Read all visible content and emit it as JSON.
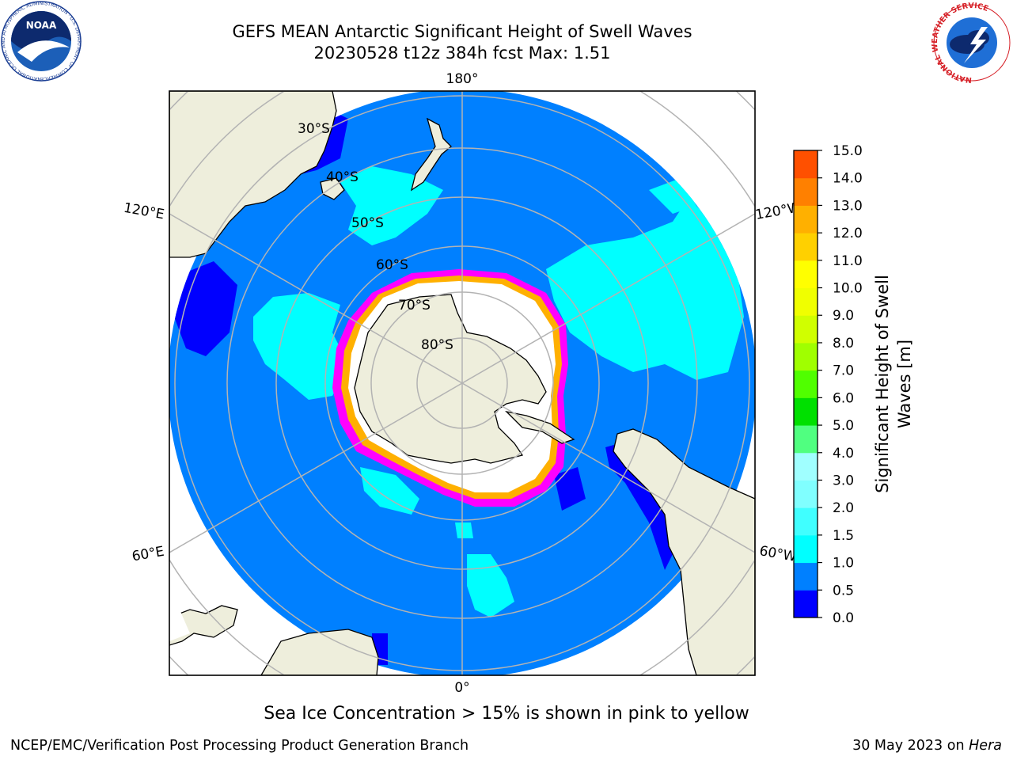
{
  "header": {
    "title_line1": "GEFS MEAN Antarctic Significant Height of Swell Waves",
    "title_line2": "20230528 t12z 384h fcst   Max: 1.51",
    "noaa_logo_text": "NOAA",
    "noaa_ring_text": "NATIONAL OCEANIC AND ATMOSPHERIC ADMINISTRATION · U.S. DEPARTMENT OF COMMERCE",
    "nws_ring_text": "NATIONAL WEATHER SERVICE"
  },
  "map": {
    "projection": "south-polar-stereographic",
    "meridian_labels": {
      "top": "180°",
      "bottom": "0°",
      "left_upper": "120°E",
      "right_upper": "120°W",
      "left_lower": "60°E",
      "right_lower": "60°W"
    },
    "latitude_labels": [
      "30°S",
      "40°S",
      "50°S",
      "60°S",
      "70°S",
      "80°S"
    ],
    "colors": {
      "ocean_low": "#0080ff",
      "ocean_very_low": "#0000ff",
      "cyan_patches": "#00ffff",
      "light_cyan": "#40e8f0",
      "land": "#eeeedc",
      "sea_ice_pink": "#ff00ff",
      "sea_ice_orange": "#ffb000",
      "gridline": "#b3b3b3"
    }
  },
  "colorbar": {
    "label_line1": "Significant Height of Swell",
    "label_line2": "Waves [m]",
    "ticks": [
      "0.0",
      "0.5",
      "1.0",
      "1.5",
      "2.0",
      "3.0",
      "4.0",
      "5.0",
      "6.0",
      "7.0",
      "8.0",
      "9.0",
      "10.0",
      "11.0",
      "12.0",
      "13.0",
      "14.0",
      "15.0"
    ],
    "colors": [
      "#0000ff",
      "#0080ff",
      "#00ffff",
      "#40ffff",
      "#80ffff",
      "#a0ffff",
      "#50ff80",
      "#00e000",
      "#50ff00",
      "#a0ff00",
      "#d0ff00",
      "#f0ff00",
      "#ffff00",
      "#ffd000",
      "#ffb000",
      "#ff8000",
      "#ff5000",
      "#ff0000"
    ]
  },
  "note": "Sea Ice Concentration > 15% is shown in pink to yellow",
  "footer": {
    "left": "NCEP/EMC/Verification Post Processing Product Generation Branch",
    "right_date": "30 May 2023 on",
    "right_host": "Hera"
  }
}
